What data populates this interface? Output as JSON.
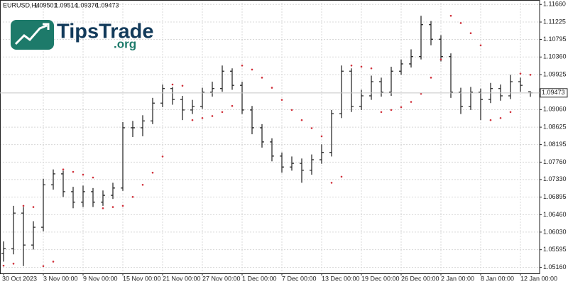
{
  "watermark": {
    "name": "TipsTrade",
    "suffix": ".org"
  },
  "chart_data": {
    "type": "ohlc",
    "title": "EURUSD,H4",
    "categories": [
      "30 Oct 2023",
      null,
      null,
      null,
      "3 Nov 00:00",
      null,
      null,
      null,
      "9 Nov 00:00",
      null,
      null,
      null,
      "15 Nov 00:00",
      null,
      null,
      null,
      "21 Nov 00:00",
      null,
      null,
      null,
      "27 Nov 00:00",
      null,
      null,
      null,
      "1 Dec 00:00",
      null,
      null,
      null,
      "7 Dec 00:00",
      null,
      null,
      null,
      "13 Dec 00:00",
      null,
      null,
      null,
      "19 Dec 00:00",
      null,
      null,
      null,
      "26 Dec 00:00",
      null,
      null,
      null,
      "2 Jan 00:00",
      null,
      null,
      null,
      "8 Jan 00:00",
      null,
      null,
      null,
      "12 Jan 00:00",
      null
    ],
    "open": [
      1.055,
      1.0562,
      1.065,
      1.0571,
      1.0615,
      1.072,
      1.0747,
      1.0703,
      1.0677,
      1.0703,
      1.0677,
      1.0694,
      1.0712,
      1.0861,
      1.0861,
      1.0878,
      1.0922,
      1.0958,
      1.0931,
      1.0905,
      1.0914,
      1.0949,
      1.0958,
      1.1001,
      1.0966,
      1.0905,
      1.0861,
      1.0826,
      1.0791,
      1.0764,
      1.0773,
      1.0756,
      1.0782,
      1.08,
      1.0896,
      1.1001,
      1.0914,
      1.094,
      1.0975,
      1.0949,
      1.1001,
      1.1019,
      1.1037,
      1.1116,
      1.108,
      1.1037,
      1.0949,
      1.0914,
      1.0949,
      1.0931,
      1.0958,
      1.094,
      1.0975,
      1.09501
    ],
    "high": [
      1.058,
      1.0668,
      1.0665,
      1.063,
      1.0735,
      1.0758,
      1.0755,
      1.0715,
      1.0718,
      1.0712,
      1.0706,
      1.0725,
      1.0875,
      1.0878,
      1.0892,
      1.0935,
      1.0968,
      1.0962,
      1.094,
      1.093,
      1.096,
      1.0975,
      1.1015,
      1.1008,
      1.0975,
      1.0915,
      1.087,
      1.0835,
      1.08,
      1.079,
      1.0785,
      1.0795,
      1.082,
      1.0905,
      1.1015,
      1.1008,
      1.0955,
      1.099,
      1.0985,
      1.1012,
      1.103,
      1.1055,
      1.1138,
      1.1125,
      1.109,
      1.1045,
      1.096,
      1.0962,
      1.0958,
      1.0972,
      1.0968,
      1.0992,
      1.0985,
      1.09514
    ],
    "low": [
      1.053,
      1.0548,
      1.0519,
      1.056,
      1.0605,
      1.0708,
      1.069,
      1.0662,
      1.0665,
      1.0665,
      1.0668,
      1.0685,
      1.0705,
      1.0838,
      1.084,
      1.087,
      1.0912,
      1.0918,
      1.088,
      1.0895,
      1.0908,
      1.0938,
      1.095,
      1.0955,
      1.0895,
      1.0845,
      1.0812,
      1.0778,
      1.075,
      1.0755,
      1.0725,
      1.0745,
      1.0772,
      1.079,
      1.0885,
      1.09,
      1.0905,
      1.093,
      1.0938,
      1.094,
      1.0992,
      1.101,
      1.103,
      1.1065,
      1.1025,
      1.0935,
      1.0895,
      1.0905,
      1.088,
      1.0922,
      1.0928,
      1.0932,
      1.095,
      1.09376
    ],
    "close": [
      1.0562,
      1.065,
      1.0571,
      1.0615,
      1.072,
      1.0747,
      1.0703,
      1.0677,
      1.0703,
      1.0677,
      1.0694,
      1.0712,
      1.0861,
      1.0861,
      1.0878,
      1.0922,
      1.0958,
      1.0931,
      1.0905,
      1.0914,
      1.0949,
      1.0958,
      1.1001,
      1.0966,
      1.0905,
      1.0861,
      1.0826,
      1.0791,
      1.0764,
      1.0773,
      1.0756,
      1.0782,
      1.08,
      1.0896,
      1.1001,
      1.0914,
      1.094,
      1.0975,
      1.0949,
      1.1001,
      1.1019,
      1.1037,
      1.1116,
      1.108,
      1.1037,
      1.0949,
      1.0914,
      1.0949,
      1.0931,
      1.0958,
      1.094,
      1.0975,
      1.0966,
      1.09473
    ],
    "color": "#1a1a1a",
    "sar": {
      "color": "#d0303a",
      "values": [
        1.052,
        1.0525,
        1.0668,
        1.0665,
        1.0519,
        1.053,
        1.0758,
        1.0752,
        1.0745,
        1.0738,
        1.0662,
        1.0665,
        1.0668,
        1.069,
        1.072,
        1.075,
        1.079,
        1.0968,
        1.0965,
        1.088,
        1.0885,
        1.089,
        1.09,
        1.0915,
        1.1015,
        1.1005,
        1.0985,
        1.096,
        1.093,
        1.0905,
        1.088,
        1.086,
        1.084,
        1.0725,
        1.074,
        1.1015,
        1.1012,
        1.1008,
        1.09,
        1.0905,
        1.0912,
        1.0925,
        1.0945,
        1.0985,
        1.103,
        1.1138,
        1.112,
        1.1095,
        1.1065,
        1.088,
        1.0885,
        1.09,
        1.0995,
        1.0992
      ]
    },
    "ylim": [
      1.0501,
      1.1177
    ],
    "yticks": [
      {
        "value": 1.1166,
        "label": "1.11660"
      },
      {
        "value": 1.11225,
        "label": "1.11225"
      },
      {
        "value": 1.10795,
        "label": "1.10795"
      },
      {
        "value": 1.1036,
        "label": "1.10360"
      },
      {
        "value": 1.09925,
        "label": "1.09925"
      },
      {
        "value": 1.0906,
        "label": "1.09060"
      },
      {
        "value": 1.08625,
        "label": "1.08625"
      },
      {
        "value": 1.08195,
        "label": "1.08195"
      },
      {
        "value": 1.0776,
        "label": "1.07760"
      },
      {
        "value": 1.0733,
        "label": "1.07330"
      },
      {
        "value": 1.06895,
        "label": "1.06895"
      },
      {
        "value": 1.0646,
        "label": "1.06460"
      },
      {
        "value": 1.0603,
        "label": "1.06030"
      },
      {
        "value": 1.05595,
        "label": "1.05595"
      },
      {
        "value": 1.0516,
        "label": "1.05160"
      }
    ],
    "grid": true
  }
}
